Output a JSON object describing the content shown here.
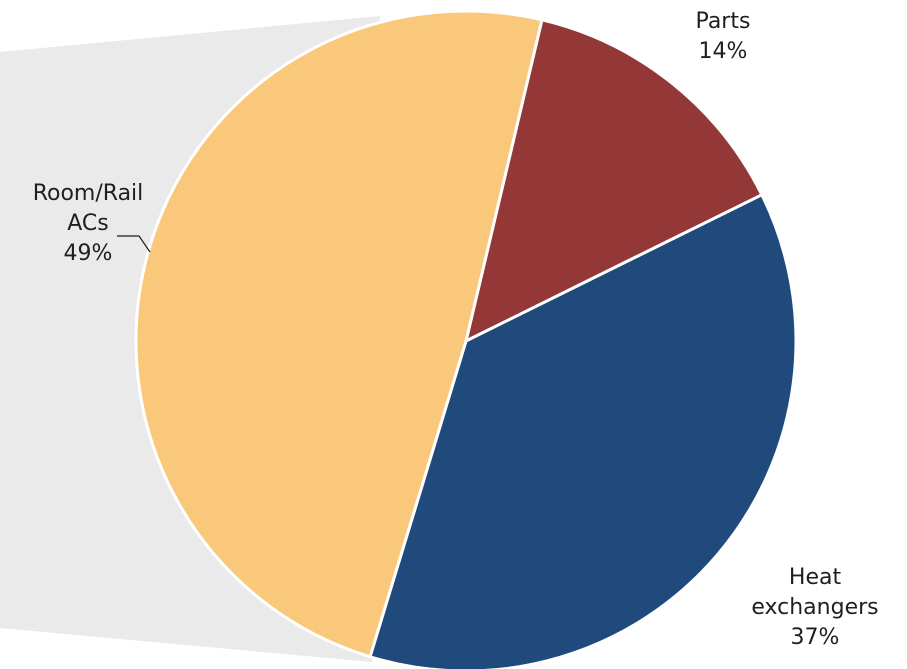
{
  "chart_data": {
    "type": "pie",
    "title": "",
    "slices": [
      {
        "label_lines": [
          "Parts"
        ],
        "value": 14,
        "value_label": "14%",
        "color": "#933737"
      },
      {
        "label_lines": [
          "Heat",
          "exchangers"
        ],
        "value": 37,
        "value_label": "37%",
        "color": "#214a7c"
      },
      {
        "label_lines": [
          "Room/Rail",
          "ACs"
        ],
        "value": 49,
        "value_label": "49%",
        "color": "#fac87b"
      }
    ],
    "background_band_color": "#eaeaea",
    "slice_border_color": "#ffffff",
    "start_angle_deg": 13.3,
    "legend": "none",
    "grid": false
  }
}
